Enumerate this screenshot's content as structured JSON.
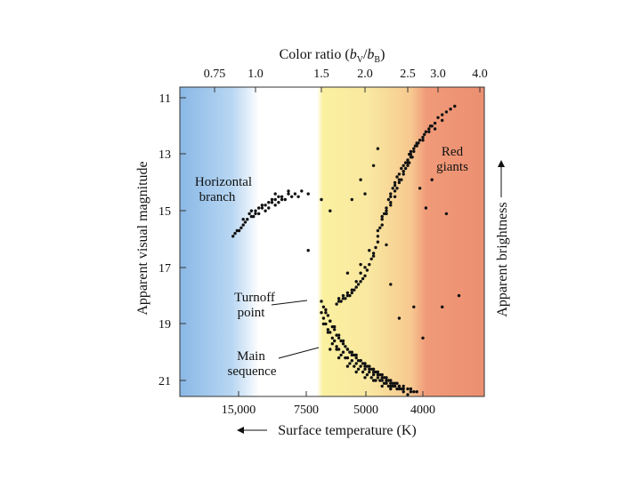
{
  "chart_data": {
    "type": "scatter",
    "title": "",
    "top_axis": {
      "label_prefix": "Color ratio (",
      "label_b1": "b",
      "label_sub1": "V",
      "label_slash": "/",
      "label_b2": "b",
      "label_sub2": "B",
      "label_suffix": ")",
      "ticks": [
        "0.75",
        "1.0",
        "1.5",
        "2.0",
        "2.5",
        "3.0",
        "4.0"
      ]
    },
    "bottom_axis": {
      "label": "Surface temperature (K)",
      "ticks": [
        "15,000",
        "7500",
        "5000",
        "4000"
      ],
      "arrow": "←"
    },
    "left_axis": {
      "label": "Apparent visual magnitude",
      "ticks": [
        "11",
        "13",
        "15",
        "17",
        "19",
        "21"
      ],
      "ylim": [
        21.6,
        10.8
      ]
    },
    "right_axis": {
      "label": "Apparent brightness",
      "arrow": "→"
    },
    "annotations": {
      "horizontal_branch": [
        "Horizontal",
        "branch"
      ],
      "red_giants": [
        "Red",
        "giants"
      ],
      "turnoff": [
        "Turnoff",
        "point"
      ],
      "main_sequence": [
        "Main",
        "sequence"
      ]
    },
    "x_units": "color index (top-axis tick index, 0 = 0.75 … 6 = 4.0)",
    "xlim": [
      -0.8,
      7.2
    ],
    "color_bands": [
      {
        "name": "blue",
        "color": "#8ab8e6",
        "from": -0.8,
        "to": 1.2
      },
      {
        "name": "white",
        "color": "#ffffff",
        "from": 1.2,
        "to": 2.0
      },
      {
        "name": "yellow",
        "color": "#f8ec9a",
        "from": 2.0,
        "to": 3.2
      },
      {
        "name": "orange",
        "color": "#f6c890",
        "from": 3.2,
        "to": 4.8
      },
      {
        "name": "red",
        "color": "#ec8f72",
        "from": 4.8,
        "to": 7.2
      }
    ],
    "series": [
      {
        "group": "horizontal-branch",
        "x": [
          0.45,
          0.6,
          0.7,
          0.8,
          0.9,
          1.0,
          1.05,
          1.1,
          1.15,
          1.2,
          1.25,
          1.3,
          1.35,
          1.4,
          1.5,
          1.6,
          1.7,
          0.5,
          0.75,
          0.95,
          1.05,
          1.15,
          1.3,
          1.45,
          1.55,
          0.65,
          0.85,
          1.0,
          1.2,
          1.4,
          0.55,
          0.7,
          0.9,
          1.1,
          1.25,
          1.35,
          1.5,
          1.65,
          1.8,
          2.0
        ],
        "y": [
          15.9,
          15.7,
          15.5,
          15.3,
          15.2,
          15.0,
          15.1,
          14.9,
          14.8,
          14.9,
          14.7,
          14.6,
          14.7,
          14.5,
          14.4,
          14.4,
          14.3,
          15.8,
          15.4,
          15.2,
          14.9,
          15.0,
          14.8,
          14.6,
          14.5,
          15.6,
          15.1,
          15.1,
          14.7,
          14.6,
          15.7,
          15.3,
          15.0,
          14.8,
          14.6,
          14.5,
          14.3,
          14.5,
          14.4,
          14.6
        ]
      },
      {
        "group": "red-giant-branch",
        "x": [
          3.3,
          3.35,
          3.4,
          3.45,
          3.5,
          3.55,
          3.6,
          3.65,
          3.7,
          3.75,
          3.8,
          3.85,
          3.9,
          3.95,
          4.0,
          4.05,
          4.1,
          4.2,
          4.3,
          4.4,
          4.5,
          4.6,
          4.7,
          4.8,
          4.9,
          5.0,
          5.1,
          5.2,
          5.3,
          5.4,
          3.3,
          3.4,
          3.5,
          3.6,
          3.7,
          3.8,
          3.9,
          4.0,
          4.1,
          4.2,
          4.3,
          4.5,
          4.7,
          4.9,
          5.1,
          3.4,
          3.5,
          3.6,
          3.7,
          3.8,
          3.9,
          4.0,
          4.1,
          4.25,
          4.35,
          4.55,
          4.75,
          3.6,
          3.7,
          3.75,
          3.85,
          3.95,
          4.05,
          4.15,
          2.9,
          3.0,
          2.7,
          4.6,
          4.4,
          3.2
        ],
        "y": [
          15.9,
          15.6,
          15.3,
          15.1,
          14.9,
          14.6,
          14.4,
          14.2,
          14.0,
          13.8,
          13.7,
          13.5,
          13.4,
          13.3,
          13.2,
          13.0,
          12.9,
          12.8,
          12.6,
          12.5,
          12.4,
          12.2,
          12.1,
          12.0,
          11.9,
          11.7,
          11.6,
          11.5,
          11.4,
          11.3,
          15.7,
          15.2,
          15.0,
          14.5,
          14.1,
          13.9,
          13.6,
          13.3,
          13.1,
          12.9,
          12.7,
          12.5,
          12.2,
          12.1,
          11.8,
          15.5,
          15.1,
          14.7,
          14.3,
          14.0,
          13.7,
          13.4,
          13.0,
          12.7,
          12.6,
          12.3,
          12.0,
          14.8,
          14.5,
          14.2,
          13.9,
          13.5,
          13.3,
          13.1,
          13.9,
          14.4,
          14.6,
          14.9,
          14.2,
          13.4
        ]
      },
      {
        "group": "subgiant-branch",
        "x": [
          3.3,
          3.25,
          3.2,
          3.15,
          3.1,
          3.05,
          3.0,
          2.95,
          2.9,
          2.85,
          2.8,
          2.75,
          2.7,
          2.65,
          2.6,
          2.55,
          2.5,
          2.45,
          2.4,
          2.35,
          3.2,
          3.0,
          2.9,
          2.8,
          2.7,
          2.6,
          2.5,
          2.4,
          3.5,
          3.1
        ],
        "y": [
          16.1,
          16.3,
          16.5,
          16.7,
          16.9,
          17.1,
          17.3,
          17.4,
          17.5,
          17.6,
          17.7,
          17.8,
          17.9,
          18.0,
          18.0,
          18.1,
          18.1,
          18.2,
          18.2,
          18.3,
          16.6,
          17.0,
          17.2,
          17.5,
          17.8,
          17.9,
          18.0,
          18.1,
          16.2,
          16.4
        ]
      },
      {
        "group": "main-sequence",
        "x": [
          2.0,
          2.05,
          2.1,
          2.15,
          2.2,
          2.25,
          2.3,
          2.35,
          2.4,
          2.45,
          2.5,
          2.55,
          2.6,
          2.65,
          2.7,
          2.75,
          2.8,
          2.85,
          2.9,
          2.95,
          3.0,
          3.05,
          3.1,
          3.15,
          3.2,
          3.25,
          3.3,
          3.35,
          3.4,
          3.45,
          3.5,
          3.55,
          3.6,
          3.65,
          3.7,
          3.75,
          3.8,
          3.9,
          4.0,
          4.1,
          4.2,
          4.3,
          2.0,
          2.05,
          2.1,
          2.15,
          2.2,
          2.25,
          2.3,
          2.35,
          2.4,
          2.5,
          2.6,
          2.7,
          2.8,
          2.9,
          3.0,
          3.1,
          3.2,
          3.3,
          3.4,
          3.5,
          3.6,
          3.7,
          3.8,
          3.9,
          4.0,
          2.1,
          2.2,
          2.3,
          2.4,
          2.5,
          2.6,
          2.7,
          2.8,
          2.9,
          3.0,
          3.1,
          3.2,
          3.3,
          3.4,
          3.5,
          3.6,
          3.7,
          3.8,
          3.9,
          4.1,
          2.05,
          2.15,
          2.25,
          2.35,
          2.45,
          2.55,
          2.65,
          2.75,
          2.85,
          2.95,
          3.05,
          3.15,
          3.25,
          3.35,
          3.45,
          3.55,
          3.65,
          3.75,
          3.85,
          2.2,
          2.4,
          2.6,
          2.8,
          3.0,
          3.2,
          3.4,
          3.6
        ],
        "y": [
          18.2,
          18.4,
          18.6,
          18.7,
          18.9,
          19.1,
          19.2,
          19.4,
          19.5,
          19.6,
          19.7,
          19.8,
          19.9,
          20.0,
          20.1,
          20.1,
          20.2,
          20.3,
          20.3,
          20.4,
          20.4,
          20.5,
          20.5,
          20.6,
          20.6,
          20.7,
          20.7,
          20.8,
          20.8,
          20.9,
          20.9,
          21.0,
          21.0,
          21.1,
          21.1,
          21.1,
          21.2,
          21.2,
          21.3,
          21.3,
          21.4,
          21.4,
          18.6,
          18.8,
          19.0,
          19.2,
          19.3,
          19.5,
          19.6,
          19.8,
          19.9,
          20.0,
          20.2,
          20.3,
          20.4,
          20.5,
          20.6,
          20.7,
          20.8,
          20.9,
          21.0,
          21.1,
          21.2,
          21.2,
          21.3,
          21.4,
          21.5,
          18.5,
          18.9,
          19.1,
          19.4,
          19.6,
          19.9,
          20.0,
          20.1,
          20.3,
          20.5,
          20.6,
          20.7,
          20.8,
          20.9,
          21.0,
          21.1,
          21.2,
          21.2,
          21.3,
          21.4,
          19.0,
          19.3,
          19.7,
          19.9,
          20.1,
          20.2,
          20.4,
          20.5,
          20.6,
          20.7,
          20.8,
          20.9,
          21.0,
          21.0,
          21.1,
          21.2,
          21.2,
          21.3,
          21.3,
          19.9,
          20.2,
          20.5,
          20.7,
          20.9,
          21.0,
          21.2,
          21.3
        ]
      },
      {
        "group": "field-stars",
        "x": [
          1.8,
          2.9,
          3.6,
          4.2,
          5.1,
          5.5,
          6.6,
          3.8,
          2.6,
          4.8,
          5.2,
          4.5,
          1.3,
          2.2,
          3.3
        ],
        "y": [
          16.4,
          16.9,
          17.6,
          18.4,
          18.4,
          18.0,
          18.6,
          18.8,
          17.2,
          13.9,
          15.1,
          19.5,
          14.4,
          15.0,
          12.8
        ]
      }
    ]
  }
}
